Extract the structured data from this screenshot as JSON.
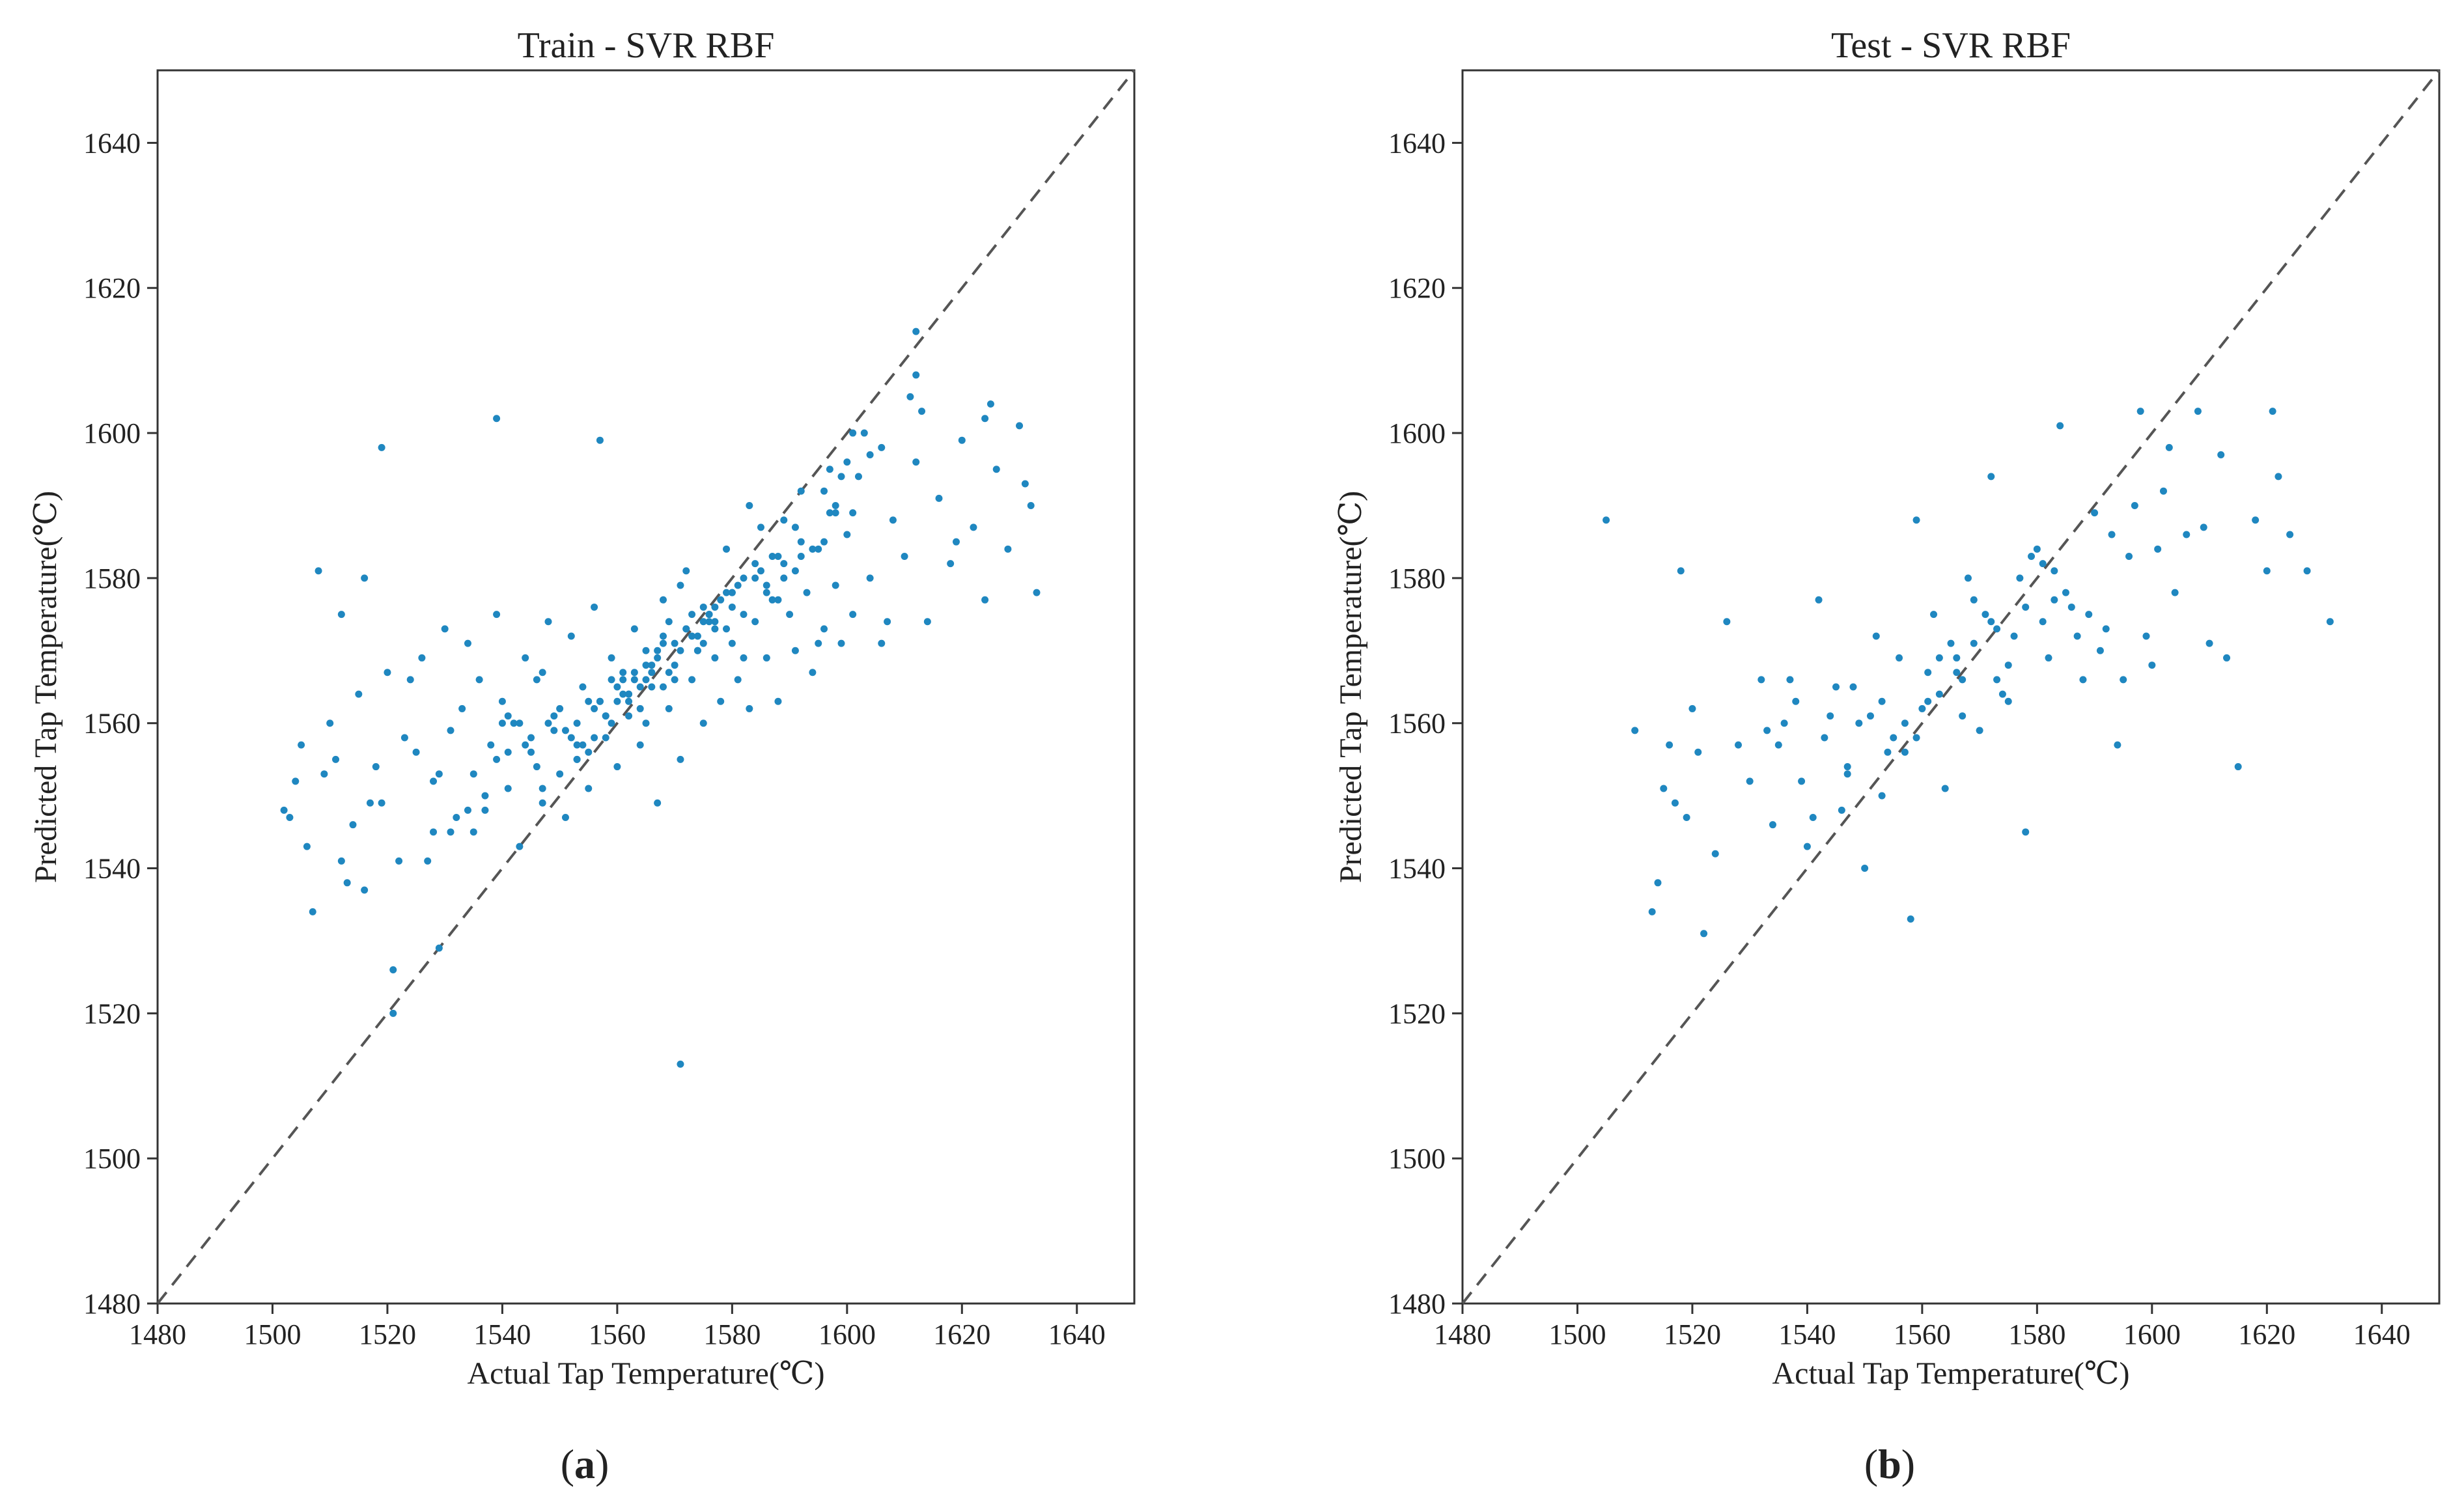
{
  "figure": {
    "panel_a_label": "a",
    "panel_b_label": "b"
  },
  "chart_data": [
    {
      "type": "scatter",
      "title": "Train - SVR RBF",
      "xlabel": "Actual Tap Temperature(℃)",
      "ylabel": "Predicted Tap Temperature(℃)",
      "xlim": [
        1480,
        1650
      ],
      "ylim": [
        1480,
        1650
      ],
      "x_ticks": [
        1480,
        1500,
        1520,
        1540,
        1560,
        1580,
        1600,
        1620,
        1640
      ],
      "y_ticks": [
        1480,
        1500,
        1520,
        1540,
        1560,
        1580,
        1600,
        1620,
        1640
      ],
      "x_tick_labels": [
        "1480",
        "1500",
        "1520",
        "1540",
        "1560",
        "1580",
        "1600",
        "1620",
        "1640"
      ],
      "y_tick_labels": [
        "1480",
        "1500",
        "1520",
        "1540",
        "1560",
        "1580",
        "1600",
        "1620",
        "1640"
      ],
      "reference_line": {
        "from": [
          1480,
          1480
        ],
        "to": [
          1650,
          1650
        ],
        "style": "dashed",
        "color": "#555555"
      },
      "point_color": "#1f87c0",
      "grid": false,
      "points": {
        "x": [
          1502,
          1503,
          1504,
          1505,
          1506,
          1507,
          1508,
          1510,
          1511,
          1512,
          1513,
          1514,
          1515,
          1516,
          1518,
          1519,
          1520,
          1521,
          1522,
          1524,
          1525,
          1526,
          1528,
          1529,
          1530,
          1531,
          1532,
          1533,
          1534,
          1535,
          1536,
          1537,
          1538,
          1539,
          1540,
          1541,
          1542,
          1543,
          1544,
          1545,
          1546,
          1547,
          1548,
          1549,
          1550,
          1551,
          1552,
          1553,
          1554,
          1555,
          1556,
          1557,
          1558,
          1559,
          1560,
          1561,
          1562,
          1563,
          1564,
          1565,
          1566,
          1567,
          1568,
          1569,
          1570,
          1571,
          1572,
          1573,
          1574,
          1575,
          1576,
          1577,
          1578,
          1579,
          1580,
          1581,
          1582,
          1583,
          1584,
          1585,
          1586,
          1587,
          1588,
          1589,
          1590,
          1591,
          1592,
          1593,
          1594,
          1595,
          1596,
          1597,
          1598,
          1599,
          1600,
          1601,
          1602,
          1604,
          1606,
          1608,
          1610,
          1612,
          1614,
          1616,
          1618,
          1620,
          1622,
          1624,
          1626,
          1628,
          1630,
          1632,
          1633,
          1519,
          1521,
          1557,
          1571,
          1539,
          1612,
          1547,
          1560,
          1575,
          1588,
          1569,
          1553,
          1582,
          1596,
          1543,
          1565,
          1579,
          1591,
          1550,
          1562,
          1574,
          1586,
          1598,
          1545,
          1557,
          1568,
          1580,
          1592,
          1537,
          1549,
          1561,
          1573,
          1585,
          1597,
          1541,
          1553,
          1565,
          1577,
          1589,
          1601,
          1531,
          1544,
          1556,
          1568,
          1580,
          1592,
          1604,
          1548,
          1560,
          1572,
          1584,
          1596,
          1527,
          1539,
          1551,
          1563,
          1575,
          1587,
          1599,
          1611,
          1555,
          1567,
          1579,
          1591,
          1603,
          1534,
          1546,
          1558,
          1570,
          1582,
          1594,
          1606,
          1562,
          1574,
          1586,
          1598,
          1516,
          1528,
          1540,
          1552,
          1564,
          1576,
          1588,
          1600,
          1612,
          1624,
          1509,
          1512,
          1517,
          1523,
          1529,
          1535,
          1541,
          1547,
          1553,
          1559,
          1565,
          1571,
          1577,
          1583,
          1589,
          1595,
          1601,
          1607,
          1613,
          1619,
          1625,
          1631,
          1566,
          1570,
          1563,
          1567,
          1572,
          1578,
          1561,
          1558,
          1555,
          1576,
          1581,
          1569,
          1564,
          1573,
          1584,
          1556,
          1559,
          1566,
          1571,
          1577,
          1568,
          1562,
          1575,
          1580,
          1554
        ],
        "y": [
          1548,
          1547,
          1552,
          1557,
          1543,
          1534,
          1581,
          1560,
          1555,
          1575,
          1538,
          1546,
          1564,
          1580,
          1554,
          1549,
          1567,
          1526,
          1541,
          1566,
          1556,
          1569,
          1545,
          1529,
          1573,
          1559,
          1547,
          1562,
          1571,
          1553,
          1566,
          1548,
          1557,
          1575,
          1563,
          1551,
          1560,
          1543,
          1569,
          1556,
          1566,
          1549,
          1574,
          1559,
          1562,
          1547,
          1572,
          1557,
          1565,
          1551,
          1576,
          1563,
          1558,
          1569,
          1554,
          1567,
          1561,
          1573,
          1557,
          1570,
          1565,
          1549,
          1577,
          1562,
          1568,
          1555,
          1581,
          1566,
          1572,
          1560,
          1575,
          1569,
          1563,
          1584,
          1571,
          1566,
          1580,
          1562,
          1574,
          1587,
          1569,
          1577,
          1563,
          1582,
          1575,
          1570,
          1592,
          1578,
          1567,
          1584,
          1573,
          1589,
          1579,
          1571,
          1586,
          1575,
          1594,
          1580,
          1571,
          1588,
          1583,
          1596,
          1574,
          1591,
          1582,
          1599,
          1587,
          1577,
          1595,
          1584,
          1601,
          1590,
          1578,
          1598,
          1520,
          1599,
          1513,
          1602,
          1614,
          1567,
          1563,
          1571,
          1577,
          1574,
          1555,
          1569,
          1585,
          1560,
          1566,
          1573,
          1581,
          1553,
          1564,
          1570,
          1578,
          1589,
          1558,
          1563,
          1572,
          1576,
          1583,
          1550,
          1561,
          1566,
          1575,
          1581,
          1595,
          1556,
          1560,
          1568,
          1574,
          1588,
          1600,
          1545,
          1557,
          1562,
          1571,
          1578,
          1585,
          1597,
          1560,
          1565,
          1573,
          1580,
          1592,
          1541,
          1555,
          1559,
          1567,
          1576,
          1583,
          1594,
          1605,
          1563,
          1570,
          1578,
          1587,
          1600,
          1548,
          1554,
          1561,
          1566,
          1575,
          1584,
          1598,
          1564,
          1570,
          1579,
          1590,
          1537,
          1552,
          1560,
          1558,
          1565,
          1574,
          1583,
          1596,
          1608,
          1602,
          1553,
          1541,
          1549,
          1558,
          1553,
          1545,
          1561,
          1551,
          1555,
          1566,
          1560,
          1579,
          1573,
          1590,
          1580,
          1571,
          1589,
          1574,
          1603,
          1585,
          1604,
          1593,
          1568,
          1571,
          1566,
          1569,
          1573,
          1577,
          1564,
          1561,
          1556,
          1575,
          1579,
          1567,
          1562,
          1572,
          1582,
          1558,
          1560,
          1567,
          1570,
          1576,
          1565,
          1563,
          1574,
          1578,
          1557
        ]
      }
    },
    {
      "type": "scatter",
      "title": "Test - SVR RBF",
      "xlabel": "Actual Tap Temperature(℃)",
      "ylabel": "Predicted Tap Temperature(℃)",
      "xlim": [
        1480,
        1650
      ],
      "ylim": [
        1480,
        1650
      ],
      "x_ticks": [
        1480,
        1500,
        1520,
        1540,
        1560,
        1580,
        1600,
        1620,
        1640
      ],
      "y_ticks": [
        1480,
        1500,
        1520,
        1540,
        1560,
        1580,
        1600,
        1620,
        1640
      ],
      "x_tick_labels": [
        "1480",
        "1500",
        "1520",
        "1540",
        "1560",
        "1580",
        "1600",
        "1620",
        "1640"
      ],
      "y_tick_labels": [
        "1480",
        "1500",
        "1520",
        "1540",
        "1560",
        "1580",
        "1600",
        "1620",
        "1640"
      ],
      "reference_line": {
        "from": [
          1480,
          1480
        ],
        "to": [
          1650,
          1650
        ],
        "style": "dashed",
        "color": "#555555"
      },
      "point_color": "#1f87c0",
      "grid": false,
      "points": {
        "x": [
          1505,
          1510,
          1513,
          1514,
          1515,
          1516,
          1517,
          1518,
          1519,
          1520,
          1521,
          1522,
          1524,
          1526,
          1528,
          1530,
          1532,
          1534,
          1536,
          1538,
          1540,
          1542,
          1544,
          1546,
          1548,
          1550,
          1552,
          1554,
          1556,
          1558,
          1559,
          1560,
          1562,
          1564,
          1566,
          1568,
          1570,
          1572,
          1574,
          1576,
          1578,
          1580,
          1582,
          1584,
          1586,
          1588,
          1590,
          1592,
          1594,
          1596,
          1598,
          1600,
          1602,
          1604,
          1606,
          1608,
          1610,
          1612,
          1615,
          1618,
          1620,
          1621,
          1622,
          1624,
          1627,
          1631,
          1535,
          1545,
          1555,
          1565,
          1575,
          1585,
          1595,
          1539,
          1549,
          1561,
          1571,
          1581,
          1591,
          1601,
          1543,
          1553,
          1563,
          1573,
          1583,
          1593,
          1547,
          1557,
          1567,
          1577,
          1587,
          1597,
          1537,
          1551,
          1569,
          1579,
          1589,
          1599,
          1541,
          1559,
          1567,
          1575,
          1583,
          1603,
          1609,
          1613,
          1533,
          1553,
          1563,
          1573,
          1557,
          1569,
          1581,
          1547,
          1561,
          1566,
          1572,
          1578
        ],
        "y": [
          1588,
          1559,
          1534,
          1538,
          1551,
          1557,
          1549,
          1581,
          1547,
          1562,
          1556,
          1531,
          1542,
          1574,
          1557,
          1552,
          1566,
          1546,
          1560,
          1563,
          1543,
          1577,
          1561,
          1548,
          1565,
          1540,
          1572,
          1556,
          1569,
          1533,
          1588,
          1562,
          1575,
          1551,
          1567,
          1580,
          1559,
          1594,
          1564,
          1572,
          1545,
          1584,
          1569,
          1601,
          1576,
          1566,
          1589,
          1573,
          1557,
          1583,
          1603,
          1568,
          1592,
          1578,
          1586,
          1603,
          1571,
          1597,
          1554,
          1588,
          1581,
          1603,
          1594,
          1586,
          1581,
          1574,
          1557,
          1565,
          1558,
          1571,
          1563,
          1578,
          1566,
          1552,
          1560,
          1567,
          1575,
          1582,
          1570,
          1584,
          1558,
          1563,
          1569,
          1573,
          1577,
          1586,
          1554,
          1560,
          1566,
          1580,
          1572,
          1590,
          1566,
          1561,
          1577,
          1583,
          1575,
          1572,
          1547,
          1558,
          1561,
          1568,
          1581,
          1598,
          1587,
          1569,
          1559,
          1550,
          1564,
          1566,
          1556,
          1571,
          1574,
          1553,
          1563,
          1569,
          1574,
          1576
        ]
      }
    }
  ]
}
